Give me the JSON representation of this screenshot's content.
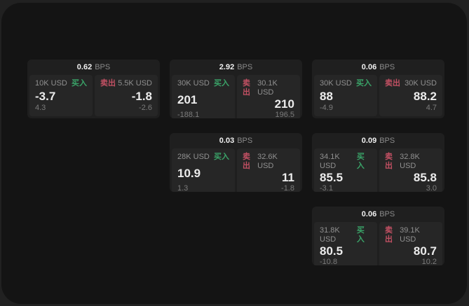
{
  "colors": {
    "buy_accent": "#3aa368",
    "sell_accent": "#c25063",
    "window_background": "#141414",
    "card_background": "#1f1f1f",
    "panel_background": "#262626"
  },
  "cards": [
    {
      "bps": "0.62",
      "unit": "BPS",
      "buy": {
        "amount": "10K USD",
        "side": "买入",
        "price": "-3.7",
        "sub": "4.3"
      },
      "sell": {
        "side": "卖出",
        "amount": "5.5K USD",
        "price": "-1.8",
        "sub": "-2.6"
      }
    },
    {
      "bps": "2.92",
      "unit": "BPS",
      "buy": {
        "amount": "30K USD",
        "side": "买入",
        "price": "201",
        "sub": "-188.1"
      },
      "sell": {
        "side": "卖出",
        "amount": "30.1K USD",
        "price": "210",
        "sub": "196.5"
      }
    },
    {
      "bps": "0.06",
      "unit": "BPS",
      "buy": {
        "amount": "30K USD",
        "side": "买入",
        "price": "88",
        "sub": "-4.9"
      },
      "sell": {
        "side": "卖出",
        "amount": "30K USD",
        "price": "88.2",
        "sub": "4.7"
      }
    },
    {
      "bps": "0.03",
      "unit": "BPS",
      "buy": {
        "amount": "28K USD",
        "side": "买入",
        "price": "10.9",
        "sub": "1.3"
      },
      "sell": {
        "side": "卖出",
        "amount": "32.6K USD",
        "price": "11",
        "sub": "-1.8"
      }
    },
    {
      "bps": "0.09",
      "unit": "BPS",
      "buy": {
        "amount": "34.1K USD",
        "side": "买入",
        "price": "85.5",
        "sub": "-3.1"
      },
      "sell": {
        "side": "卖出",
        "amount": "32.8K USD",
        "price": "85.8",
        "sub": "3.0"
      }
    },
    {
      "bps": "0.06",
      "unit": "BPS",
      "buy": {
        "amount": "31.8K USD",
        "side": "买入",
        "price": "80.5",
        "sub": "-10.8"
      },
      "sell": {
        "side": "卖出",
        "amount": "39.1K USD",
        "price": "80.7",
        "sub": "10.2"
      }
    }
  ]
}
